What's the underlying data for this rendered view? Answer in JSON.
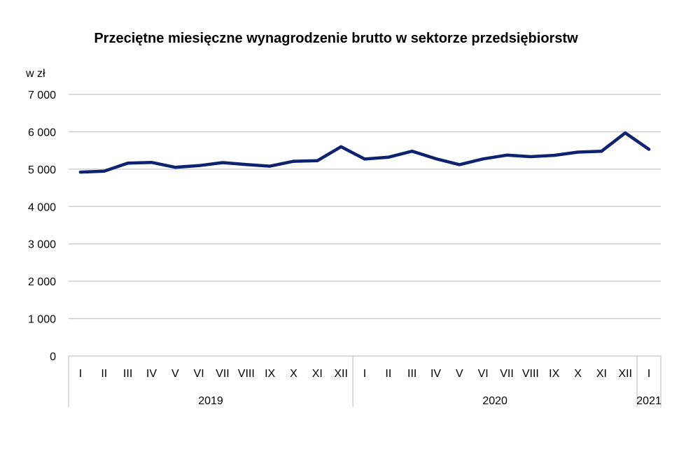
{
  "chart_data": {
    "type": "line",
    "title": "Przeciętne miesięczne wynagrodzenie brutto w sektorze przedsiębiorstw",
    "ylabel": "w zł",
    "xlabel": "",
    "ylim": [
      0,
      7000
    ],
    "yticks": [
      0,
      1000,
      2000,
      3000,
      4000,
      5000,
      6000,
      7000
    ],
    "ytick_labels": [
      "0",
      "1 000",
      "2 000",
      "3 000",
      "4 000",
      "5 000",
      "6 000",
      "7 000"
    ],
    "grid": true,
    "legend": "none",
    "categories": [
      "I",
      "II",
      "III",
      "IV",
      "V",
      "VI",
      "VII",
      "VIII",
      "IX",
      "X",
      "XI",
      "XII",
      "I",
      "II",
      "III",
      "IV",
      "V",
      "VI",
      "VII",
      "VIII",
      "IX",
      "X",
      "XI",
      "XII",
      "I"
    ],
    "groups": [
      {
        "label": "2019",
        "start": 0,
        "count": 12
      },
      {
        "label": "2020",
        "start": 12,
        "count": 12
      },
      {
        "label": "2021",
        "start": 24,
        "count": 1
      }
    ],
    "series": [
      {
        "color": "#0d2270",
        "values": [
          4920,
          4945,
          5160,
          5180,
          5050,
          5095,
          5175,
          5125,
          5080,
          5210,
          5225,
          5600,
          5270,
          5320,
          5480,
          5280,
          5120,
          5275,
          5375,
          5335,
          5370,
          5455,
          5480,
          5970,
          5530
        ]
      }
    ]
  }
}
